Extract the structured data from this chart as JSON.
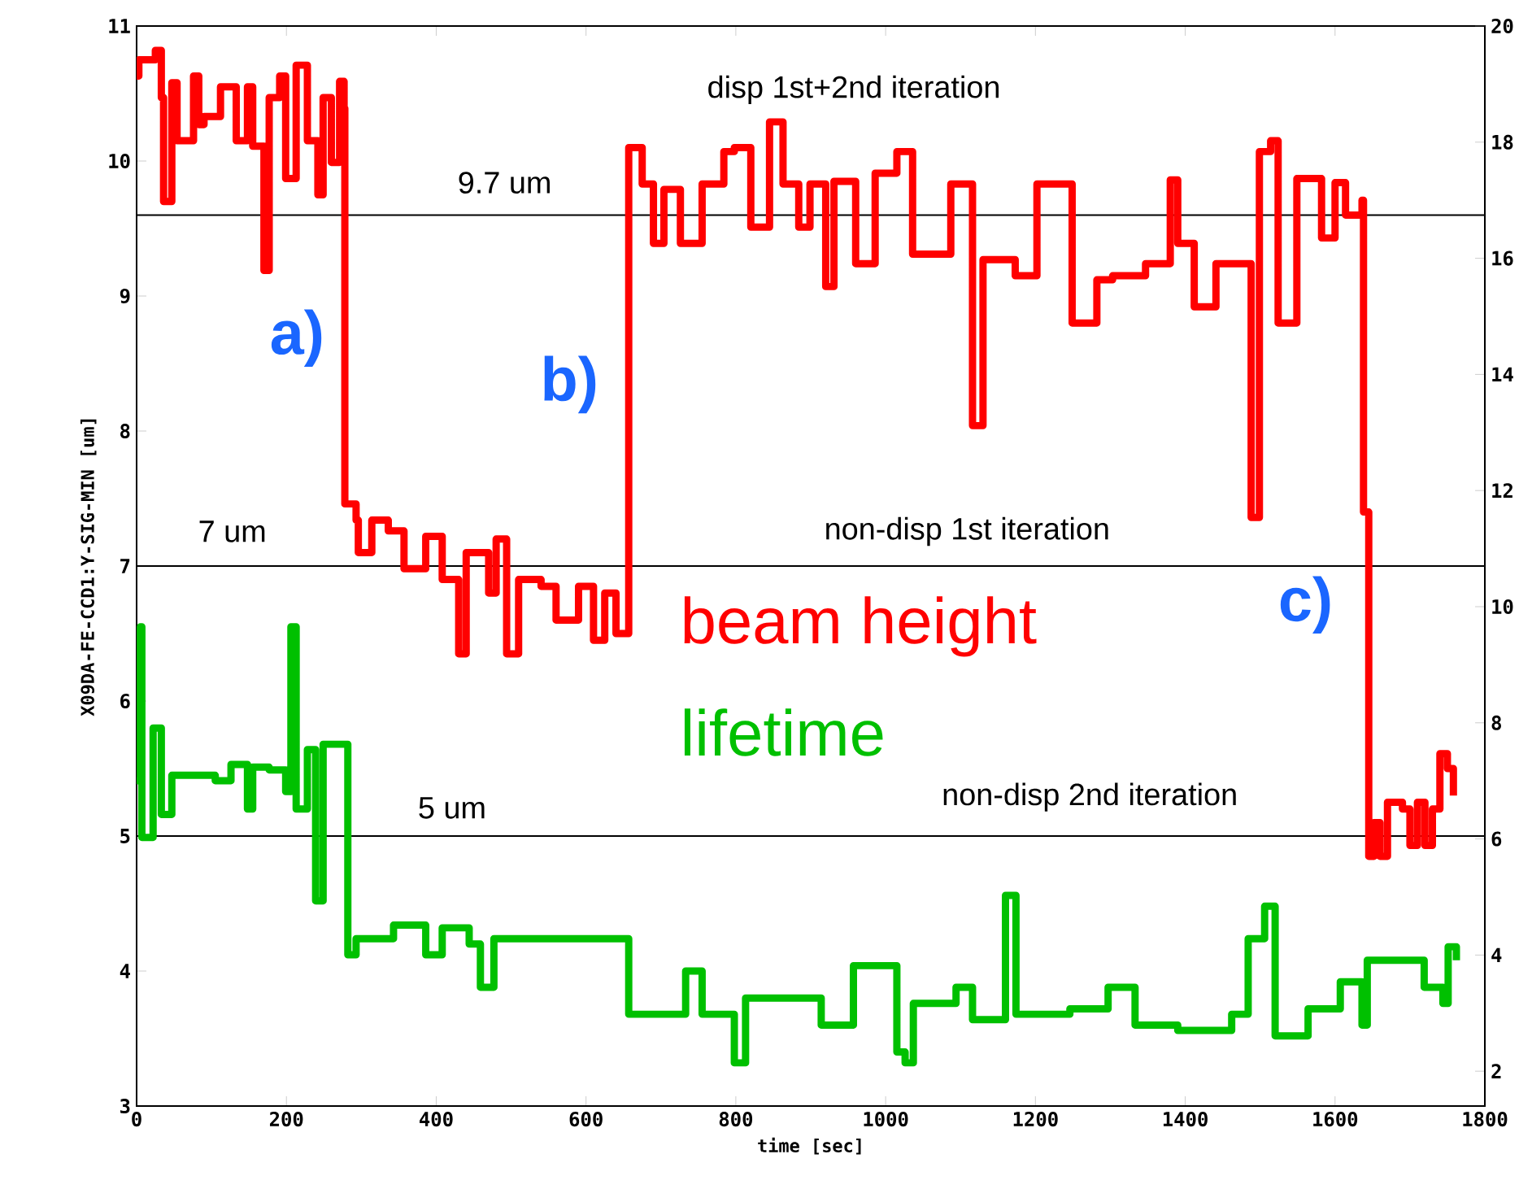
{
  "chart_data": {
    "type": "step",
    "xlabel": "time [sec]",
    "ylabel": "X09DA-FE-CCD1:Y-SIG-MIN [um]",
    "xlim": [
      0,
      1800
    ],
    "xticks": [
      0,
      200,
      400,
      600,
      800,
      1000,
      1200,
      1400,
      1600,
      1800
    ],
    "ylim": [
      3,
      11
    ],
    "yticks": [
      3,
      4,
      5,
      6,
      7,
      8,
      9,
      10,
      11
    ],
    "y2lim": [
      1.4,
      20
    ],
    "y2ticks": [
      2,
      4,
      6,
      8,
      10,
      12,
      14,
      16,
      18,
      20
    ],
    "series": [
      {
        "name": "beam height",
        "color": "#ff0000",
        "x": [
          0,
          3,
          25,
          33,
          36,
          47,
          54,
          76,
          83,
          90,
          112,
          133,
          148,
          155,
          170,
          177,
          191,
          199,
          213,
          228,
          242,
          249,
          260,
          271,
          277,
          278,
          293,
          296,
          314,
          336,
          357,
          386,
          408,
          420,
          430,
          440,
          470,
          480,
          494,
          510,
          540,
          560,
          590,
          610,
          625,
          640,
          657,
          675,
          690,
          704,
          726,
          755,
          784,
          798,
          820,
          845,
          863,
          884,
          899,
          920,
          931,
          960,
          986,
          1015,
          1036,
          1058,
          1087,
          1116,
          1130,
          1173,
          1202,
          1249,
          1282,
          1303,
          1347,
          1380,
          1390,
          1412,
          1441,
          1488,
          1499,
          1514,
          1524,
          1549,
          1582,
          1600,
          1614,
          1636,
          1638,
          1645,
          1652,
          1660,
          1670,
          1690,
          1700,
          1710,
          1720,
          1730,
          1740,
          1750,
          1758
        ],
        "values": [
          10.63,
          10.75,
          10.82,
          10.47,
          9.7,
          10.58,
          10.15,
          10.63,
          10.27,
          10.33,
          10.55,
          10.15,
          10.55,
          10.11,
          9.19,
          10.47,
          10.63,
          9.87,
          10.71,
          10.15,
          9.75,
          10.47,
          9.99,
          10.59,
          10.39,
          7.46,
          7.34,
          7.1,
          7.34,
          7.26,
          6.98,
          7.22,
          6.9,
          6.9,
          6.35,
          7.1,
          6.8,
          7.2,
          6.35,
          6.9,
          6.85,
          6.6,
          6.85,
          6.45,
          6.8,
          6.5,
          10.1,
          9.83,
          9.39,
          9.79,
          9.39,
          9.83,
          10.07,
          10.1,
          9.51,
          10.29,
          9.83,
          9.51,
          9.83,
          9.07,
          9.85,
          9.24,
          9.91,
          10.07,
          9.31,
          9.31,
          9.83,
          8.04,
          9.27,
          9.15,
          9.83,
          8.8,
          9.12,
          9.15,
          9.24,
          9.86,
          9.39,
          8.92,
          9.24,
          7.36,
          10.07,
          10.15,
          8.8,
          9.87,
          9.43,
          9.84,
          9.6,
          9.71,
          7.4,
          4.85,
          5.1,
          4.85,
          5.25,
          5.2,
          4.93,
          5.25,
          4.93,
          5.2,
          5.61,
          5.5,
          5.3
        ]
      },
      {
        "name": "lifetime",
        "color": "#00c000",
        "x": [
          0,
          5,
          7,
          22,
          33,
          47,
          105,
          126,
          148,
          155,
          177,
          199,
          206,
          213,
          228,
          239,
          249,
          278,
          282,
          293,
          343,
          386,
          408,
          444,
          459,
          477,
          647,
          657,
          704,
          733,
          755,
          798,
          813,
          841,
          914,
          957,
          1015,
          1026,
          1037,
          1094,
          1116,
          1160,
          1174,
          1246,
          1297,
          1333,
          1390,
          1462,
          1484,
          1506,
          1520,
          1564,
          1607,
          1636,
          1643,
          1694,
          1719,
          1744,
          1751,
          1762
        ],
        "values": [
          5.41,
          6.55,
          4.99,
          5.8,
          5.16,
          5.45,
          5.41,
          5.53,
          5.2,
          5.51,
          5.49,
          5.33,
          6.55,
          5.2,
          5.64,
          4.52,
          5.68,
          5.68,
          4.12,
          4.24,
          4.34,
          4.12,
          4.32,
          4.2,
          3.88,
          4.24,
          4.24,
          3.68,
          3.68,
          4.0,
          3.68,
          3.32,
          3.8,
          3.8,
          3.6,
          4.04,
          3.4,
          3.32,
          3.76,
          3.88,
          3.64,
          4.56,
          3.68,
          3.72,
          3.88,
          3.6,
          3.56,
          3.68,
          4.24,
          4.48,
          3.52,
          3.72,
          3.92,
          3.6,
          4.08,
          4.08,
          3.88,
          3.76,
          4.18,
          4.08
        ]
      }
    ],
    "ref_lines": [
      {
        "axis": "y",
        "value": 9.6,
        "color": "#000000"
      },
      {
        "axis": "y",
        "value": 7,
        "color": "#000000"
      },
      {
        "axis": "y",
        "value": 5,
        "color": "#000000"
      }
    ],
    "annotations": [
      "a)",
      "b)",
      "c)",
      "9.7 um",
      "7 um",
      "5 um",
      "disp 1st+2nd iteration",
      "non-disp 1st iteration",
      "non-disp 2nd iteration"
    ]
  }
}
